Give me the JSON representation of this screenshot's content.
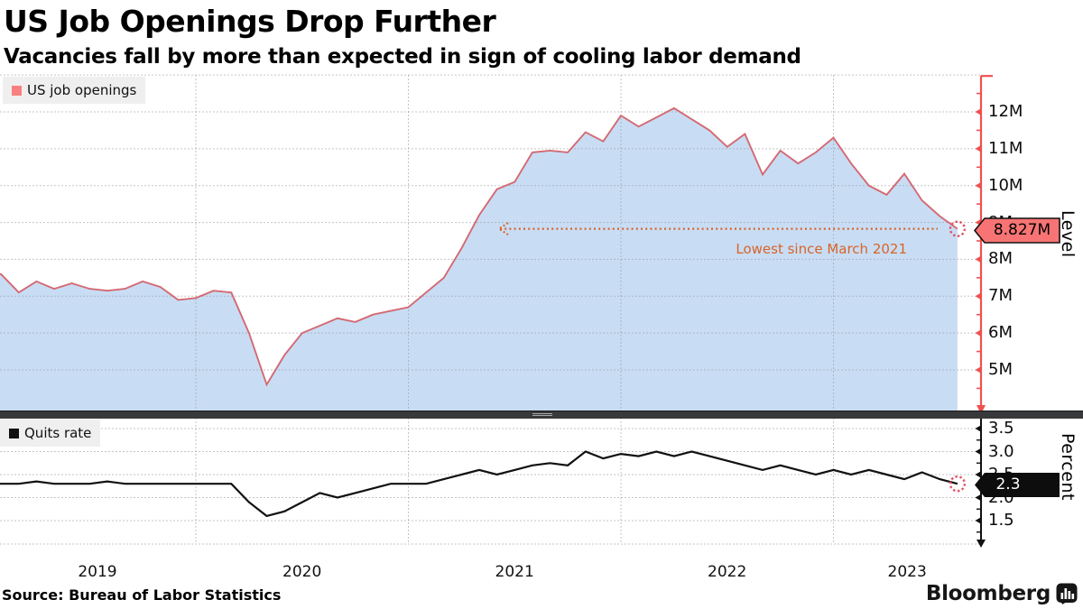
{
  "header": {
    "title": "US Job Openings Drop Further",
    "subtitle": "Vacancies fall by more than expected in sign of cooling labor demand"
  },
  "top_panel": {
    "legend": {
      "label": "US job openings"
    },
    "axis": {
      "title": "Level",
      "ticks": [
        "12M",
        "11M",
        "10M",
        "9M",
        "8M",
        "7M",
        "6M",
        "5M"
      ],
      "badge": "8.827M"
    },
    "annotation": {
      "text": "Lowest since March 2021"
    }
  },
  "bottom_panel": {
    "legend": {
      "label": "Quits rate"
    },
    "axis": {
      "title": "Percent",
      "ticks": [
        "3.5",
        "3.0",
        "2.5",
        "2.0",
        "1.5"
      ],
      "badge": "2.3"
    }
  },
  "x_axis": {
    "years": [
      "2019",
      "2020",
      "2021",
      "2022",
      "2023"
    ]
  },
  "footer": {
    "source": "Source: Bureau of Labor Statistics",
    "brand": "Bloomberg"
  },
  "colors": {
    "axis_red": "#ef5050",
    "openings_line": "#d46973",
    "openings_fill": "#c8ddf4",
    "badge_red": "#f87474",
    "legend_red": "#f98080",
    "annotation_orange": "#d96327",
    "quits_line": "#111111",
    "badge_black": "#0d0d0d",
    "gridline": "#969696"
  },
  "chart_data": [
    {
      "type": "area",
      "name": "US job openings",
      "unit": "millions",
      "frequency": "monthly",
      "x_start": "2018-12",
      "x_end": "2023-07",
      "ylabel": "Level",
      "ylim": [
        3.9,
        13.0
      ],
      "ytick_values": [
        12,
        11,
        10,
        9,
        8,
        7,
        6,
        5
      ],
      "last_value_label": "8.827M",
      "annotation": "Lowest since March 2021",
      "values": [
        7.5,
        7.6,
        7.1,
        7.4,
        7.2,
        7.35,
        7.2,
        7.15,
        7.2,
        7.4,
        7.25,
        6.9,
        6.95,
        7.15,
        7.1,
        6.0,
        4.6,
        5.4,
        6.0,
        6.2,
        6.4,
        6.3,
        6.5,
        6.6,
        6.7,
        7.1,
        7.5,
        8.3,
        9.2,
        9.9,
        10.1,
        10.9,
        10.95,
        10.9,
        11.45,
        11.2,
        11.9,
        11.6,
        11.85,
        12.1,
        11.8,
        11.5,
        11.05,
        11.4,
        10.3,
        10.95,
        10.6,
        10.9,
        11.3,
        10.6,
        10.0,
        9.75,
        10.32,
        9.6,
        9.17,
        8.827
      ]
    },
    {
      "type": "line",
      "name": "Quits rate",
      "unit": "percent",
      "frequency": "monthly",
      "x_start": "2018-12",
      "x_end": "2023-07",
      "ylabel": "Percent",
      "ylim": [
        1.2,
        3.7
      ],
      "ytick_values": [
        3.5,
        3.0,
        2.5,
        2.0,
        1.5
      ],
      "last_value_label": "2.3",
      "values": [
        2.3,
        2.3,
        2.3,
        2.35,
        2.3,
        2.3,
        2.3,
        2.35,
        2.3,
        2.3,
        2.3,
        2.3,
        2.3,
        2.3,
        2.3,
        1.9,
        1.6,
        1.7,
        1.9,
        2.1,
        2.0,
        2.1,
        2.2,
        2.3,
        2.3,
        2.3,
        2.4,
        2.5,
        2.6,
        2.5,
        2.6,
        2.7,
        2.75,
        2.7,
        3.0,
        2.85,
        2.95,
        2.9,
        3.0,
        2.9,
        3.0,
        2.9,
        2.8,
        2.7,
        2.6,
        2.7,
        2.6,
        2.5,
        2.6,
        2.5,
        2.6,
        2.5,
        2.4,
        2.55,
        2.4,
        2.3
      ]
    }
  ]
}
